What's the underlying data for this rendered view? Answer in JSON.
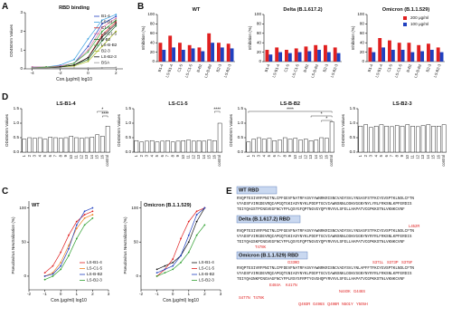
{
  "panel_labels": [
    "A",
    "B",
    "D",
    "C",
    "E"
  ],
  "chart_data": [
    {
      "type": "line",
      "title": "RBD binding",
      "xlabel": "Con.(μg/ml) log10",
      "ylabel": "OD450nm Values",
      "x": [
        -4,
        -3,
        -2,
        -1,
        0,
        1,
        2
      ],
      "xlim": [
        -4.5,
        2.5
      ],
      "xticks": [
        -4,
        -2,
        0,
        2
      ],
      "ylim": [
        0,
        3
      ],
      "yticks": [
        0,
        1,
        2,
        3
      ],
      "legend": true,
      "series": [
        {
          "name": "B1-4",
          "color": "#1f3fbf",
          "values": [
            0.1,
            0.1,
            0.15,
            0.3,
            1.2,
            2.4,
            2.8
          ]
        },
        {
          "name": "LS-B1-4",
          "color": "#3aa0e0",
          "values": [
            0.1,
            0.1,
            0.2,
            0.5,
            1.6,
            2.6,
            2.9
          ]
        },
        {
          "name": "C1-5",
          "color": "#d62020",
          "values": [
            0.05,
            0.1,
            0.1,
            0.2,
            0.6,
            1.8,
            2.5
          ]
        },
        {
          "name": "LS-C1-5",
          "color": "#e070a0",
          "values": [
            0.1,
            0.1,
            0.15,
            0.3,
            1.0,
            2.2,
            2.7
          ]
        },
        {
          "name": "B-B2",
          "color": "#1a6b2a",
          "values": [
            0.05,
            0.05,
            0.1,
            0.2,
            0.5,
            1.5,
            2.3
          ]
        },
        {
          "name": "LS-B-B2",
          "color": "#40b040",
          "values": [
            0.05,
            0.1,
            0.1,
            0.3,
            0.9,
            2.0,
            2.6
          ]
        },
        {
          "name": "B2-3",
          "color": "#a8b820",
          "values": [
            0.05,
            0.05,
            0.1,
            0.15,
            0.4,
            1.2,
            2.0
          ]
        },
        {
          "name": "LS-B2-3",
          "color": "#111111",
          "values": [
            0.05,
            0.05,
            0.1,
            0.2,
            0.6,
            1.7,
            2.4
          ]
        },
        {
          "name": "BSA",
          "color": "#999999",
          "values": [
            0.05,
            0.05,
            0.05,
            0.05,
            0.05,
            0.06,
            0.08
          ]
        }
      ]
    },
    {
      "type": "bar",
      "title": "WT",
      "ylabel": "Inhibition (%)",
      "categories": [
        "B1-4",
        "LS-B1-4",
        "C1-5",
        "LS-C1-5",
        "B-B2",
        "LS-B-B2",
        "B2-3",
        "LS-B2-3"
      ],
      "ylim": [
        0,
        100
      ],
      "yticks": [
        0,
        20,
        40,
        60,
        80,
        100
      ],
      "legend": false,
      "series": [
        {
          "name": "200 μg/ml",
          "color": "#e02020",
          "values": [
            40,
            55,
            40,
            35,
            30,
            60,
            40,
            38
          ]
        },
        {
          "name": "100 μg/ml",
          "color": "#2040c0",
          "values": [
            25,
            30,
            25,
            28,
            22,
            40,
            30,
            28
          ]
        }
      ]
    },
    {
      "type": "bar",
      "title": "Delta (B.1.617.2)",
      "ylabel": "Inhibition (%)",
      "categories": [
        "B1-4",
        "LS-B1-4",
        "C1-5",
        "LS-C1-5",
        "B-B2",
        "LS-B-B2",
        "B2-3",
        "LS-B2-3"
      ],
      "ylim": [
        0,
        100
      ],
      "yticks": [
        0,
        20,
        40,
        60,
        80,
        100
      ],
      "legend": false,
      "series": [
        {
          "name": "200 μg/ml",
          "color": "#e02020",
          "values": [
            25,
            30,
            25,
            28,
            32,
            35,
            35,
            30
          ]
        },
        {
          "name": "100 μg/ml",
          "color": "#2040c0",
          "values": [
            15,
            20,
            18,
            20,
            22,
            25,
            20,
            18
          ]
        }
      ]
    },
    {
      "type": "bar",
      "title": "Omicron (B.1.1.529)",
      "ylabel": "Inhibition (%)",
      "categories": [
        "B1-4",
        "LS-B1-4",
        "C1-5",
        "LS-C1-5",
        "B-B2",
        "LS-B-B2",
        "B2-3",
        "LS-B2-3"
      ],
      "ylim": [
        0,
        100
      ],
      "yticks": [
        0,
        20,
        40,
        60,
        80,
        100
      ],
      "legend": true,
      "series": [
        {
          "name": "200 μg/ml",
          "color": "#e02020",
          "values": [
            30,
            50,
            45,
            40,
            40,
            35,
            38,
            30
          ]
        },
        {
          "name": "100 μg/ml",
          "color": "#2040c0",
          "values": [
            20,
            30,
            25,
            25,
            20,
            22,
            25,
            20
          ]
        }
      ]
    },
    {
      "type": "bar",
      "title": "LS-B1-4",
      "ylabel": "OD450nm Values",
      "color": "#ffffff",
      "edgecolor": "#000000",
      "categories": [
        "1",
        "2",
        "3",
        "4",
        "5",
        "6",
        "7",
        "8",
        "9",
        "10",
        "11",
        "12",
        "13",
        "14",
        "15",
        "16",
        "control"
      ],
      "values": [
        0.45,
        0.5,
        0.48,
        0.5,
        0.45,
        0.52,
        0.5,
        0.48,
        0.5,
        0.55,
        0.5,
        0.48,
        0.5,
        0.52,
        0.6,
        0.55,
        0.9
      ],
      "ylim": [
        0,
        1.5
      ],
      "yticks": [
        {
          "value": 0,
          "label": "0.0"
        },
        0.5,
        {
          "value": 1,
          "label": "1.0"
        },
        1.5
      ],
      "brackets": [
        {
          "label": "*",
          "from": "15",
          "to": "control"
        },
        {
          "label": "****",
          "from": "16",
          "to": "control"
        }
      ]
    },
    {
      "type": "bar",
      "title": "LS-C1-5",
      "ylabel": "OD450nm Values",
      "color": "#ffffff",
      "edgecolor": "#000000",
      "categories": [
        "1",
        "2",
        "3",
        "4",
        "5",
        "6",
        "7",
        "8",
        "9",
        "10",
        "11",
        "12",
        "13",
        "14",
        "15",
        "16",
        "control"
      ],
      "values": [
        0.4,
        0.35,
        0.38,
        0.4,
        0.35,
        0.38,
        0.4,
        0.35,
        0.38,
        0.4,
        0.42,
        0.38,
        0.4,
        0.38,
        0.42,
        0.4,
        1.0
      ],
      "ylim": [
        0,
        1.5
      ],
      "yticks": [
        {
          "value": 0,
          "label": "0.0"
        },
        0.5,
        {
          "value": 1,
          "label": "1.0"
        },
        1.5
      ],
      "brackets": [
        {
          "label": "****",
          "from": "16",
          "to": "control"
        }
      ]
    },
    {
      "type": "bar",
      "title": "LS-B-B2",
      "ylabel": "OD450nm Values",
      "color": "#ffffff",
      "edgecolor": "#000000",
      "categories": [
        "1",
        "2",
        "3",
        "4",
        "5",
        "6",
        "7",
        "8",
        "9",
        "10",
        "11",
        "12",
        "13",
        "14",
        "15",
        "16",
        "control"
      ],
      "values": [
        0.35,
        0.45,
        0.5,
        0.45,
        0.48,
        0.4,
        0.42,
        0.5,
        0.45,
        0.48,
        0.42,
        0.45,
        0.4,
        0.42,
        0.5,
        0.48,
        1.05
      ],
      "ylim": [
        0,
        1.5
      ],
      "yticks": [
        {
          "value": 0,
          "label": "0.0"
        },
        0.5,
        {
          "value": 1,
          "label": "1.0"
        },
        1.5
      ],
      "brackets": [
        {
          "label": "****",
          "from": "1",
          "to": "control"
        },
        {
          "label": "*",
          "from": "13",
          "to": "control"
        },
        {
          "label": "*",
          "from": "15",
          "to": "control"
        }
      ]
    },
    {
      "type": "bar",
      "title": "LS-B2-3",
      "ylabel": "OD450nm Values",
      "color": "#ffffff",
      "edgecolor": "#000000",
      "categories": [
        "1",
        "2",
        "3",
        "4",
        "5",
        "6",
        "7",
        "8",
        "9",
        "10",
        "11",
        "12",
        "13",
        "14",
        "15",
        "16",
        "control"
      ],
      "values": [
        0.9,
        0.95,
        0.85,
        0.9,
        0.95,
        0.9,
        0.88,
        0.92,
        0.9,
        0.95,
        0.9,
        0.88,
        0.92,
        0.95,
        0.9,
        0.9,
        0.95
      ],
      "ylim": [
        0,
        1.5
      ],
      "yticks": [
        {
          "value": 0,
          "label": "0.0"
        },
        0.5,
        {
          "value": 1,
          "label": "1.0"
        },
        1.5
      ],
      "brackets": []
    },
    {
      "type": "line",
      "title": "WT",
      "xlabel": "Con.(μg/ml) log10",
      "ylabel": "Pseudovirus Neutralization (%)",
      "x": [
        -1,
        -0.5,
        0,
        0.5,
        1,
        1.5,
        2
      ],
      "xlim": [
        -2,
        3
      ],
      "xticks": [
        -2,
        -1,
        0,
        1,
        2,
        3
      ],
      "ylim": [
        -20,
        110
      ],
      "yticks": [
        0,
        50,
        100
      ],
      "legend": true,
      "series": [
        {
          "name": "LS-B1-4",
          "color": "#e02020",
          "values": [
            5,
            15,
            35,
            60,
            80,
            90,
            95
          ]
        },
        {
          "name": "LS-C1-5",
          "color": "#f08020",
          "values": [
            0,
            5,
            20,
            45,
            70,
            85,
            90
          ]
        },
        {
          "name": "LS-B-B2",
          "color": "#2040c0",
          "values": [
            0,
            3,
            15,
            40,
            75,
            95,
            100
          ]
        },
        {
          "name": "LS-B2-3",
          "color": "#30a030",
          "values": [
            -5,
            0,
            10,
            30,
            55,
            75,
            85
          ]
        }
      ]
    },
    {
      "type": "line",
      "title": "Omicron (B.1.1.529)",
      "xlabel": "Con.(μg/ml) log10",
      "ylabel": "Pseudovirus Neutralization (%)",
      "x": [
        -1,
        -0.5,
        0,
        0.5,
        1,
        1.5,
        2
      ],
      "xlim": [
        -2,
        3
      ],
      "xticks": [
        -2,
        -1,
        0,
        1,
        2,
        3
      ],
      "ylim": [
        -20,
        110
      ],
      "yticks": [
        0,
        50,
        100
      ],
      "legend": true,
      "series": [
        {
          "name": "LS-B1-4",
          "color": "#111111",
          "values": [
            10,
            15,
            20,
            30,
            50,
            80,
            100
          ]
        },
        {
          "name": "LS-C1-5",
          "color": "#e02020",
          "values": [
            0,
            10,
            25,
            55,
            80,
            95,
            100
          ]
        },
        {
          "name": "LS-B-B2",
          "color": "#2040c0",
          "values": [
            5,
            10,
            15,
            30,
            60,
            90,
            100
          ]
        },
        {
          "name": "LS-B2-3",
          "color": "#30a030",
          "values": [
            0,
            5,
            10,
            20,
            35,
            60,
            75
          ]
        }
      ]
    }
  ],
  "sequence_panel": {
    "sections": [
      {
        "title": "WT RBD",
        "lines": [
          "RVQPTESIVRFPNITNLCPFGEVFNATRFASVYAWNRKRISNCVADYSVLYNSASFSTFKCYGVSPTKLNDLCFTN",
          "VYADSFVIRGDEVRQIAPGQTGKIADYNYKLPDDFTGCVIAWNSNNLDSKVGGNYNYLYRLFRKSNLKPFERDIS",
          "TEIYQAGSTPCNGVEGFNCYFPLQSYGFQPTNGVGYQPYRVVVLSFELLHAPATVCGPKKSTNLVKNKCVNF"
        ],
        "mutations": []
      },
      {
        "title": "Delta (B.1.617.2) RBD",
        "lines": [
          "RVQPTESIVRFPNITNLCPFGEVFNATRFASVYAWNRKRISNCVADYSVLYNSASFSTFKCYGVSPTKLNDLCFTN",
          "VYADSFVIRGDEVRQIAPGQTGKIADYNYKLPDDFTGCVIAWNSNNLDSKVGGNYNYRYRLFRKSNLKPFERDIS",
          "TEIYQAGSKPCNGVEGFNCYFPLQSYGFQPTNGVGYQPYRVVVLSFELLHAPATVCGPKKSTNLVKNKCVNF"
        ],
        "mutations": [
          "L452R",
          "T478K"
        ]
      },
      {
        "title": "Omicron (B.1.1.529) RBD",
        "lines": [
          "RVQPTESIVRFPNITNLCPFDEVFNATRFASVYAWNRKRISNCVADYSVLYNLAPFFTFKCYGVSPTKLNDLCFTN",
          "VYADSFVIRGDEVRQIAPGQTGNIADYNYKLPDDFTGCVIAWNSNKLDSKVSGNYNYRYRLFRKSNLKPFERDIS",
          "TEIYQAGNKPCNGVAGFNCYFPLRSYSFRPTYGVGHQPYRVVVLSFELLHAPATVCGPKKSTNLVKNKCVNF"
        ],
        "mutations": [
          "G339D",
          "S371L",
          "S373P",
          "S375F",
          "K417N",
          "N440K",
          "G446S",
          "S477N",
          "T478K",
          "E484A",
          "Q493R",
          "G496S",
          "Q498R",
          "N501Y",
          "Y505H"
        ]
      }
    ]
  }
}
